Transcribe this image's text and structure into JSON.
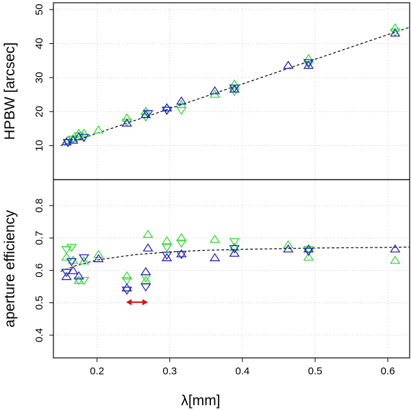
{
  "colors": {
    "green": "#33dd33",
    "blue": "#2222cc",
    "red": "#dd1111",
    "fit": "#000000",
    "grid": "#cccccc"
  },
  "chart_data": [
    {
      "type": "scatter",
      "title": "",
      "xlabel": "λ[mm]",
      "ylabel": "HPBW [arcsec]",
      "xlim": [
        0.14,
        0.63
      ],
      "ylim": [
        0,
        52
      ],
      "xticks": [
        "0.2",
        "0.3",
        "0.4",
        "0.5",
        "0.6"
      ],
      "yticks": [
        "10",
        "20",
        "30",
        "40",
        "50"
      ],
      "grid": true,
      "series": [
        {
          "color": "green",
          "marker": "triangle-up",
          "points": [
            [
              0.16,
              11.5
            ],
            [
              0.167,
              12.0
            ],
            [
              0.175,
              13.5
            ],
            [
              0.182,
              13.5
            ],
            [
              0.202,
              14.5
            ],
            [
              0.241,
              18.0
            ],
            [
              0.267,
              20.0
            ],
            [
              0.296,
              21.0
            ],
            [
              0.316,
              22.0
            ],
            [
              0.362,
              25.0
            ],
            [
              0.389,
              28.0
            ],
            [
              0.463,
              33.5
            ],
            [
              0.491,
              35.5
            ],
            [
              0.61,
              44.5
            ]
          ]
        },
        {
          "color": "green",
          "marker": "triangle-down",
          "points": [
            [
              0.16,
              11.0
            ],
            [
              0.167,
              12.0
            ],
            [
              0.175,
              13.0
            ],
            [
              0.182,
              12.5
            ],
            [
              0.241,
              17.0
            ],
            [
              0.267,
              18.5
            ],
            [
              0.296,
              20.5
            ],
            [
              0.316,
              20.5
            ],
            [
              0.389,
              26.0
            ],
            [
              0.491,
              34.0
            ],
            [
              0.61,
              43.5
            ]
          ]
        },
        {
          "color": "blue",
          "marker": "triangle-up",
          "points": [
            [
              0.158,
              11.0
            ],
            [
              0.167,
              11.5
            ],
            [
              0.175,
              12.5
            ],
            [
              0.241,
              16.5
            ],
            [
              0.267,
              19.0
            ],
            [
              0.296,
              21.0
            ],
            [
              0.316,
              23.0
            ],
            [
              0.362,
              26.0
            ],
            [
              0.389,
              26.5
            ],
            [
              0.463,
              33.5
            ],
            [
              0.491,
              33.5
            ],
            [
              0.61,
              43.0
            ]
          ]
        },
        {
          "color": "blue",
          "marker": "triangle-down",
          "points": [
            [
              0.16,
              11.0
            ],
            [
              0.182,
              12.5
            ],
            [
              0.27,
              19.5
            ],
            [
              0.296,
              20.5
            ],
            [
              0.389,
              27.0
            ],
            [
              0.491,
              34.5
            ]
          ]
        }
      ],
      "fit": {
        "style": "dashed",
        "points": [
          [
            0.15,
            10.0
          ],
          [
            0.63,
            44.8
          ]
        ]
      }
    },
    {
      "type": "scatter",
      "title": "",
      "xlabel": "λ[mm]",
      "ylabel": "aperture efficiency",
      "xlim": [
        0.14,
        0.63
      ],
      "ylim": [
        0.33,
        0.88
      ],
      "xticks": [
        "0.2",
        "0.3",
        "0.4",
        "0.5",
        "0.6"
      ],
      "yticks": [
        "0.4",
        "0.5",
        "0.6",
        "0.7",
        "0.8"
      ],
      "grid": true,
      "series": [
        {
          "color": "green",
          "marker": "triangle-up",
          "points": [
            [
              0.158,
              0.64
            ],
            [
              0.167,
              0.63
            ],
            [
              0.175,
              0.568
            ],
            [
              0.182,
              0.628
            ],
            [
              0.202,
              0.648
            ],
            [
              0.241,
              0.582
            ],
            [
              0.267,
              0.568
            ],
            [
              0.27,
              0.71
            ],
            [
              0.296,
              0.69
            ],
            [
              0.316,
              0.7
            ],
            [
              0.362,
              0.695
            ],
            [
              0.389,
              0.67
            ],
            [
              0.463,
              0.678
            ],
            [
              0.491,
              0.64
            ],
            [
              0.61,
              0.63
            ]
          ]
        },
        {
          "color": "green",
          "marker": "triangle-down",
          "points": [
            [
              0.158,
              0.665
            ],
            [
              0.165,
              0.672
            ],
            [
              0.175,
              0.57
            ],
            [
              0.182,
              0.57
            ],
            [
              0.241,
              0.57
            ],
            [
              0.267,
              0.578
            ],
            [
              0.296,
              0.672
            ],
            [
              0.316,
              0.685
            ],
            [
              0.389,
              0.69
            ],
            [
              0.491,
              0.665
            ]
          ]
        },
        {
          "color": "blue",
          "marker": "triangle-up",
          "points": [
            [
              0.158,
              0.58
            ],
            [
              0.167,
              0.598
            ],
            [
              0.175,
              0.582
            ],
            [
              0.202,
              0.635
            ],
            [
              0.241,
              0.545
            ],
            [
              0.267,
              0.595
            ],
            [
              0.27,
              0.668
            ],
            [
              0.296,
              0.638
            ],
            [
              0.316,
              0.65
            ],
            [
              0.362,
              0.638
            ],
            [
              0.389,
              0.652
            ],
            [
              0.463,
              0.665
            ],
            [
              0.491,
              0.665
            ],
            [
              0.61,
              0.665
            ]
          ]
        },
        {
          "color": "blue",
          "marker": "triangle-down",
          "points": [
            [
              0.158,
              0.595
            ],
            [
              0.165,
              0.628
            ],
            [
              0.182,
              0.64
            ],
            [
              0.241,
              0.54
            ],
            [
              0.267,
              0.55
            ],
            [
              0.296,
              0.648
            ],
            [
              0.316,
              0.65
            ],
            [
              0.389,
              0.668
            ],
            [
              0.491,
              0.66
            ]
          ]
        }
      ],
      "fit": {
        "style": "dashed",
        "points": [
          [
            0.15,
            0.597
          ],
          [
            0.17,
            0.614
          ],
          [
            0.2,
            0.632
          ],
          [
            0.25,
            0.648
          ],
          [
            0.3,
            0.657
          ],
          [
            0.35,
            0.662
          ],
          [
            0.4,
            0.665
          ],
          [
            0.45,
            0.667
          ],
          [
            0.5,
            0.669
          ],
          [
            0.55,
            0.67
          ],
          [
            0.6,
            0.671
          ],
          [
            0.63,
            0.672
          ]
        ]
      },
      "annotations": [
        {
          "type": "double-arrow",
          "color": "red",
          "x_from": 0.24,
          "x_to": 0.27,
          "y": 0.502
        }
      ]
    }
  ]
}
